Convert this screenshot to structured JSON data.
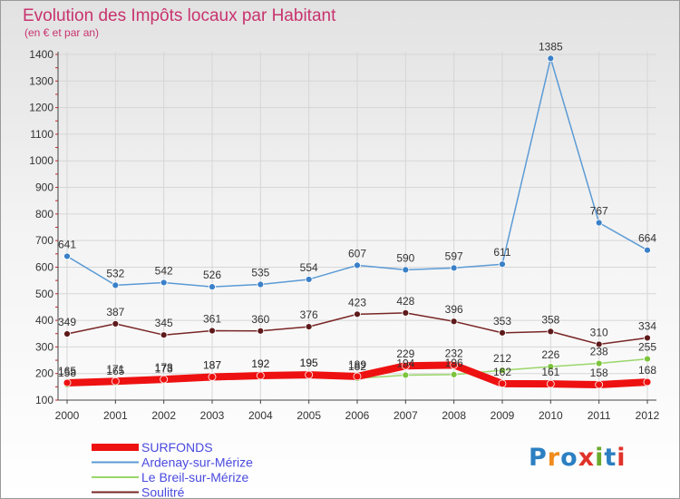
{
  "chart_data": {
    "type": "line",
    "title": "Evolution des Impôts locaux par Habitant",
    "subtitle": "(en € et par an)",
    "x": [
      2000,
      2001,
      2002,
      2003,
      2004,
      2005,
      2006,
      2007,
      2008,
      2009,
      2010,
      2011,
      2012
    ],
    "ylim": [
      100,
      1400
    ],
    "yticks": [
      100,
      200,
      300,
      400,
      500,
      600,
      700,
      800,
      900,
      1000,
      1100,
      1200,
      1300,
      1400
    ],
    "series": [
      {
        "name": "Ardenay-sur-Mérize",
        "color": "#5b9bd5",
        "marker": "#3a80c8",
        "values": [
          641,
          532,
          542,
          526,
          535,
          554,
          607,
          590,
          597,
          611,
          1385,
          767,
          664
        ]
      },
      {
        "name": "Soulitré",
        "color": "#7a2626",
        "marker": "#5e1a1a",
        "values": [
          349,
          387,
          345,
          361,
          360,
          376,
          423,
          428,
          396,
          353,
          358,
          310,
          334
        ]
      },
      {
        "name": "Le Breil-sur-Mérize",
        "color": "#9ad66a",
        "marker": "#7cc43c",
        "values": [
          158,
          165,
          173,
          187,
          192,
          195,
          182,
          194,
          196,
          212,
          226,
          238,
          255
        ]
      },
      {
        "name": "SURFONDS",
        "color": "#ee1111",
        "marker": "#ee1111",
        "values": [
          165,
          171,
          178,
          187,
          192,
          195,
          189,
          229,
          232,
          162,
          161,
          158,
          168
        ]
      }
    ],
    "legend": [
      "SURFONDS",
      "Ardenay-sur-Mérize",
      "Le Breil-sur-Mérize",
      "Soulitré"
    ],
    "legend_position": "bottom-left"
  },
  "logo": {
    "text": "Proxiti"
  }
}
